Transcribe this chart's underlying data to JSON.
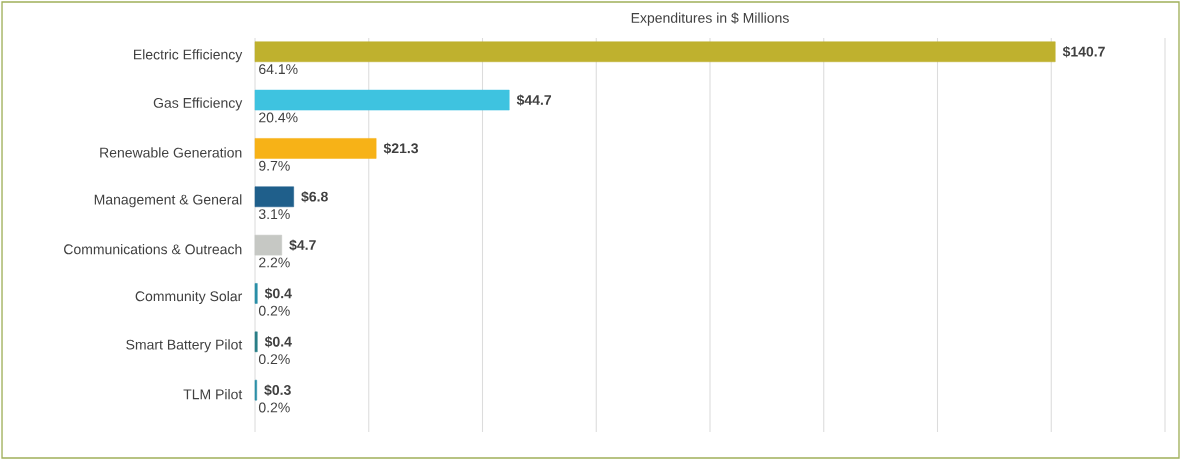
{
  "chart_data": {
    "type": "bar",
    "orientation": "horizontal",
    "title": "Expenditures in $ Millions",
    "categories": [
      "Electric Efficiency",
      "Gas Efficiency",
      "Renewable Generation",
      "Management & General",
      "Communications & Outreach",
      "Community Solar",
      "Smart Battery Pilot",
      "TLM Pilot"
    ],
    "values": [
      140.7,
      44.7,
      21.3,
      6.8,
      4.7,
      0.4,
      0.4,
      0.3
    ],
    "colors": [
      "#bfb12e",
      "#3ec3e0",
      "#f7b217",
      "#1f5f8b",
      "#c6c8c4",
      "#2a8fa8",
      "#2a7f88",
      "#2a8fa8"
    ],
    "value_labels": [
      "$140.7",
      "$44.7",
      "$21.3",
      "$6.8",
      "$4.7",
      "$0.4",
      "$0.4",
      "$0.3"
    ],
    "annotations": [
      "64.1%",
      "20.4%",
      "9.7%",
      "3.1%",
      "2.2%",
      "0.2%",
      "0.2%",
      "0.2%"
    ],
    "xlim": [
      0,
      160
    ],
    "xticks": [
      {
        "value": 0,
        "label": null
      },
      {
        "value": 20,
        "label": null
      },
      {
        "value": 40,
        "label": null
      },
      {
        "value": 60,
        "label": null
      },
      {
        "value": 80,
        "label": null
      },
      {
        "value": 100,
        "label": null
      },
      {
        "value": 120,
        "label": null
      },
      {
        "value": 140,
        "label": null
      },
      {
        "value": 160,
        "label": null
      }
    ],
    "grid": "x",
    "tick_labels": "y"
  }
}
